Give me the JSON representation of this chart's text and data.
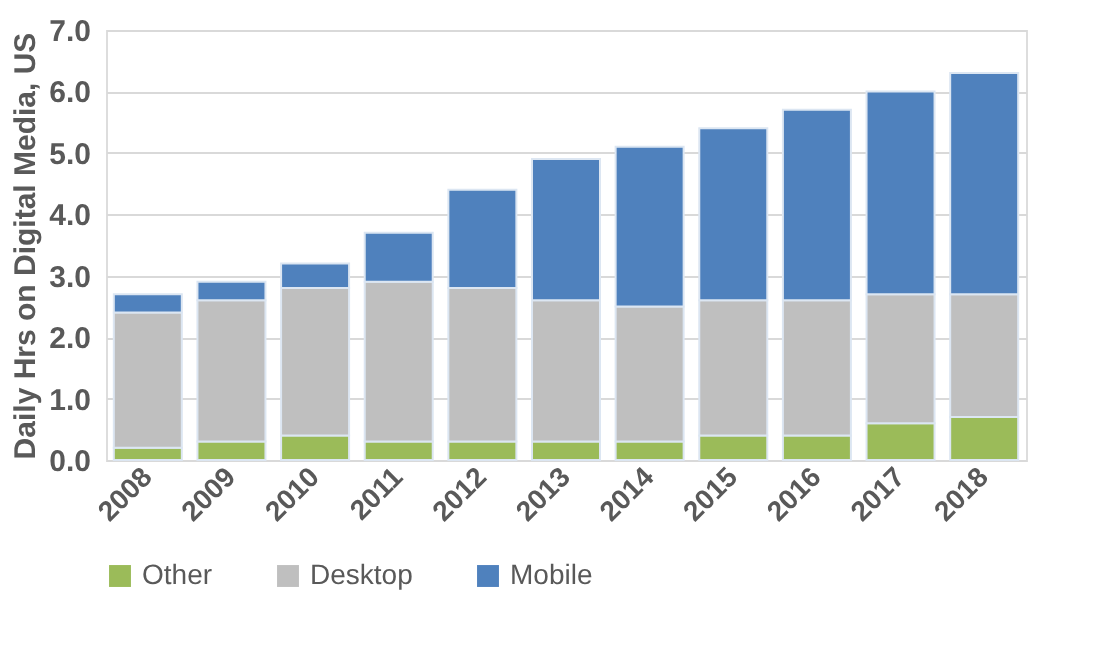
{
  "chart_data": {
    "type": "bar",
    "stacked": true,
    "ylabel": "Daily Hrs on Digital Media, US",
    "categories": [
      "2008",
      "2009",
      "2010",
      "2011",
      "2012",
      "2013",
      "2014",
      "2015",
      "2016",
      "2017",
      "2018"
    ],
    "series": [
      {
        "name": "Other",
        "color": "#9bbb59",
        "values": [
          0.2,
          0.3,
          0.4,
          0.3,
          0.3,
          0.3,
          0.3,
          0.4,
          0.4,
          0.6,
          0.7
        ]
      },
      {
        "name": "Desktop",
        "color": "#bfbfbf",
        "values": [
          2.2,
          2.3,
          2.4,
          2.6,
          2.5,
          2.3,
          2.2,
          2.2,
          2.2,
          2.1,
          2.0
        ]
      },
      {
        "name": "Mobile",
        "color": "#4f81bd",
        "values": [
          0.3,
          0.3,
          0.4,
          0.8,
          1.6,
          2.3,
          2.6,
          2.8,
          3.1,
          3.3,
          3.6
        ]
      }
    ],
    "ylim": [
      0,
      7
    ],
    "yticks": [
      {
        "value": 0,
        "label": "0.0"
      },
      {
        "value": 1,
        "label": "1.0"
      },
      {
        "value": 2,
        "label": "2.0"
      },
      {
        "value": 3,
        "label": "3.0"
      },
      {
        "value": 4,
        "label": "4.0"
      },
      {
        "value": 5,
        "label": "5.0"
      },
      {
        "value": 6,
        "label": "6.0"
      },
      {
        "value": 7,
        "label": "7.0"
      }
    ],
    "grid": "y",
    "legend": "bottom"
  }
}
